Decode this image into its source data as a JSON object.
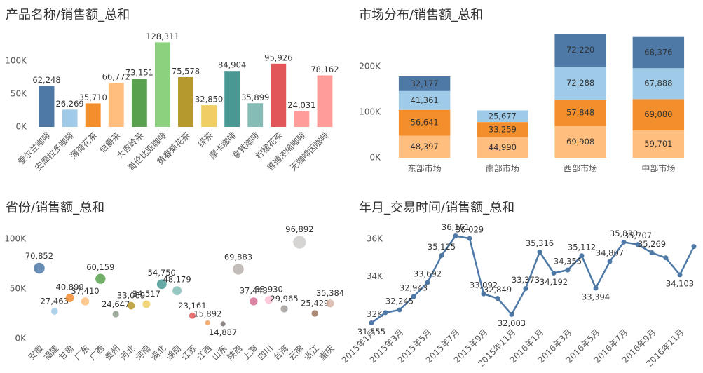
{
  "chart_data": [
    {
      "type": "bar",
      "title": "产品名称/销售额_总和",
      "categories": [
        "爱尔兰咖啡",
        "安摩拉多咖啡",
        "薄荷花茶",
        "伯爵茶",
        "大吉岭茶",
        "哥伦比亚咖啡",
        "黄春菊花茶",
        "绿茶",
        "摩卡咖啡",
        "拿铁咖啡",
        "柠檬花茶",
        "普通浓缩咖啡",
        "无咖啡因咖啡"
      ],
      "values": [
        62248,
        26269,
        35710,
        66772,
        73151,
        128311,
        75578,
        32850,
        84904,
        35899,
        95926,
        24031,
        78162
      ],
      "value_labels": [
        "62,248",
        "26,269",
        "35,710",
        "66,772",
        "73,151",
        "128,311",
        "75,578",
        "32,850",
        "84,904",
        "35,899",
        "95,926",
        "24,031",
        "78,162"
      ],
      "colors": [
        "#4e79a7",
        "#a0cbe8",
        "#f28e2b",
        "#ffbe7d",
        "#59a14f",
        "#8cd17d",
        "#b6992d",
        "#f1ce63",
        "#499894",
        "#86bcb6",
        "#e15759",
        "#ff9d9a",
        "#ff9d9a"
      ],
      "ylim": [
        0,
        150000
      ],
      "yticks": [
        {
          "value": 0,
          "label": "0K"
        },
        {
          "value": 50000,
          "label": "50K"
        },
        {
          "value": 100000,
          "label": "100K"
        }
      ]
    },
    {
      "type": "stacked_bar",
      "title": "市场分布/销售额_总和",
      "categories": [
        "东部市场",
        "南部市场",
        "西部市场",
        "中部市场"
      ],
      "series": [
        {
          "color": "#ffbe7d",
          "values": [
            48397,
            44990,
            69908,
            59701
          ],
          "value_labels": [
            "48,397",
            "44,990",
            "69,908",
            "59,701"
          ]
        },
        {
          "color": "#f28e2b",
          "values": [
            56641,
            33259,
            57848,
            69080
          ],
          "value_labels": [
            "56,641",
            "33,259",
            "57,848",
            "69,080"
          ]
        },
        {
          "color": "#a0cbe8",
          "values": [
            41361,
            25677,
            72288,
            67888
          ],
          "value_labels": [
            "41,361",
            "25,677",
            "72,288",
            "67,888"
          ]
        },
        {
          "color": "#4e79a7",
          "values": [
            32177,
            null,
            72220,
            68376
          ],
          "value_labels": [
            "32,177",
            null,
            "72,220",
            "68,376"
          ]
        }
      ],
      "ylim": [
        0,
        280000
      ],
      "yticks": [
        {
          "value": 0,
          "label": "0K"
        },
        {
          "value": 100000,
          "label": "100K"
        },
        {
          "value": 200000,
          "label": "200K"
        }
      ]
    },
    {
      "type": "scatter",
      "title": "省份/销售额_总和",
      "categories": [
        "安徽",
        "福建",
        "甘肃",
        "广东",
        "广西",
        "贵州",
        "河北",
        "河南",
        "湖北",
        "湖南",
        "江苏",
        "江西",
        "山东",
        "陕西",
        "上海",
        "四川",
        "台湾",
        "云南",
        "浙江",
        "重庆"
      ],
      "values": [
        70852,
        27463,
        40899,
        37410,
        60159,
        24647,
        33069,
        34517,
        54750,
        48179,
        23161,
        15892,
        14887,
        69883,
        37443,
        38930,
        29965,
        96892,
        25429,
        35384
      ],
      "value_labels": [
        "70,852",
        "27,463",
        "40,899",
        "37,410",
        "60,159",
        "24,647",
        "33,069",
        "34,517",
        "54,750",
        "48,179",
        "23,161",
        "15,892",
        "14,887",
        "69,883",
        "37,443",
        "38,930",
        "29,965",
        "96,892",
        "25,429",
        "35,384"
      ],
      "colors": [
        "#4e79a7",
        "#a0cbe8",
        "#f28e2b",
        "#ffbe7d",
        "#59a14f",
        "#8c9a88",
        "#b6992d",
        "#f1ce63",
        "#499894",
        "#86bcb6",
        "#e15759",
        "#f5a25d",
        "#79706e",
        "#bab0ac",
        "#d37295",
        "#fabfd2",
        "#a09c9a",
        "#d0cccc",
        "#9d7660",
        "#d7b5a6"
      ],
      "ylim": [
        0,
        110000
      ],
      "yticks": [
        {
          "value": 0,
          "label": "0K"
        },
        {
          "value": 50000,
          "label": "50K"
        },
        {
          "value": 100000,
          "label": "100K"
        }
      ]
    },
    {
      "type": "line",
      "title": "年月_交易时间/销售额_总和",
      "categories": [
        "2015年1月",
        null,
        "2015年3月",
        null,
        "2015年5月",
        null,
        "2015年7月",
        null,
        "2015年9月",
        null,
        "2015年11月",
        null,
        "2016年1月",
        null,
        "2016年3月",
        null,
        "2016年5月",
        null,
        "2016年7月",
        null,
        "2016年9月",
        null,
        "2016年11月",
        null
      ],
      "values": [
        31555,
        32100,
        32245,
        32943,
        33692,
        35125,
        36161,
        36029,
        33092,
        32849,
        32003,
        33373,
        35316,
        34192,
        34355,
        35112,
        33394,
        34807,
        35830,
        35707,
        35269,
        35000,
        34103,
        35600
      ],
      "value_labels": [
        "31,555",
        null,
        "32,245",
        "32,943",
        "33,692",
        "35,125",
        "36,161",
        "36,029",
        "33,092",
        "32,849",
        "32,003",
        "33,373",
        "35,316",
        "34,192",
        "34,355",
        "35,112",
        "33,394",
        "34,807",
        "35,830",
        "35,707",
        "35,269",
        null,
        "34,103",
        null
      ],
      "color": "#4e79a7",
      "ylim": [
        31500,
        36700
      ],
      "yticks": [
        {
          "value": 32000,
          "label": "32K"
        },
        {
          "value": 34000,
          "label": "34K"
        },
        {
          "value": 36000,
          "label": "36K"
        }
      ]
    }
  ]
}
